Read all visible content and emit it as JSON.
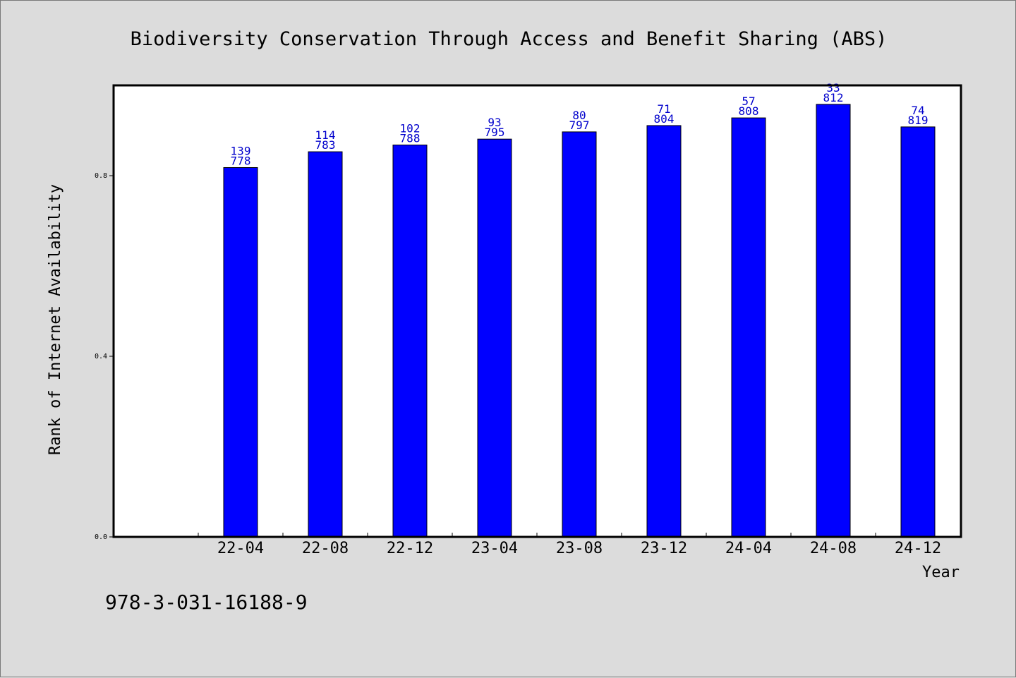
{
  "chart_data": {
    "type": "bar",
    "title": "Biodiversity Conservation Through Access and Benefit Sharing (ABS)",
    "xlabel": "Year",
    "ylabel": "Rank of Internet Availability",
    "categories": [
      "22-04",
      "22-08",
      "22-12",
      "23-04",
      "23-08",
      "23-12",
      "24-04",
      "24-08",
      "24-12"
    ],
    "values": [
      0.818,
      0.853,
      0.868,
      0.881,
      0.897,
      0.911,
      0.928,
      0.958,
      0.908
    ],
    "bar_labels_top": [
      "139",
      "114",
      "102",
      "93",
      "80",
      "71",
      "57",
      "33",
      "74"
    ],
    "bar_labels_bottom": [
      "778",
      "783",
      "788",
      "795",
      "797",
      "804",
      "808",
      "812",
      "819"
    ],
    "ylim": [
      0,
      1.0
    ],
    "yticks": [
      "0.0",
      "0.4",
      "0.8"
    ],
    "ytick_values": [
      0.0,
      0.4,
      0.8
    ],
    "grid": false,
    "bar_color": "#0000ff",
    "label_color": "#0000cc"
  },
  "footer_text": "978-3-031-16188-9"
}
